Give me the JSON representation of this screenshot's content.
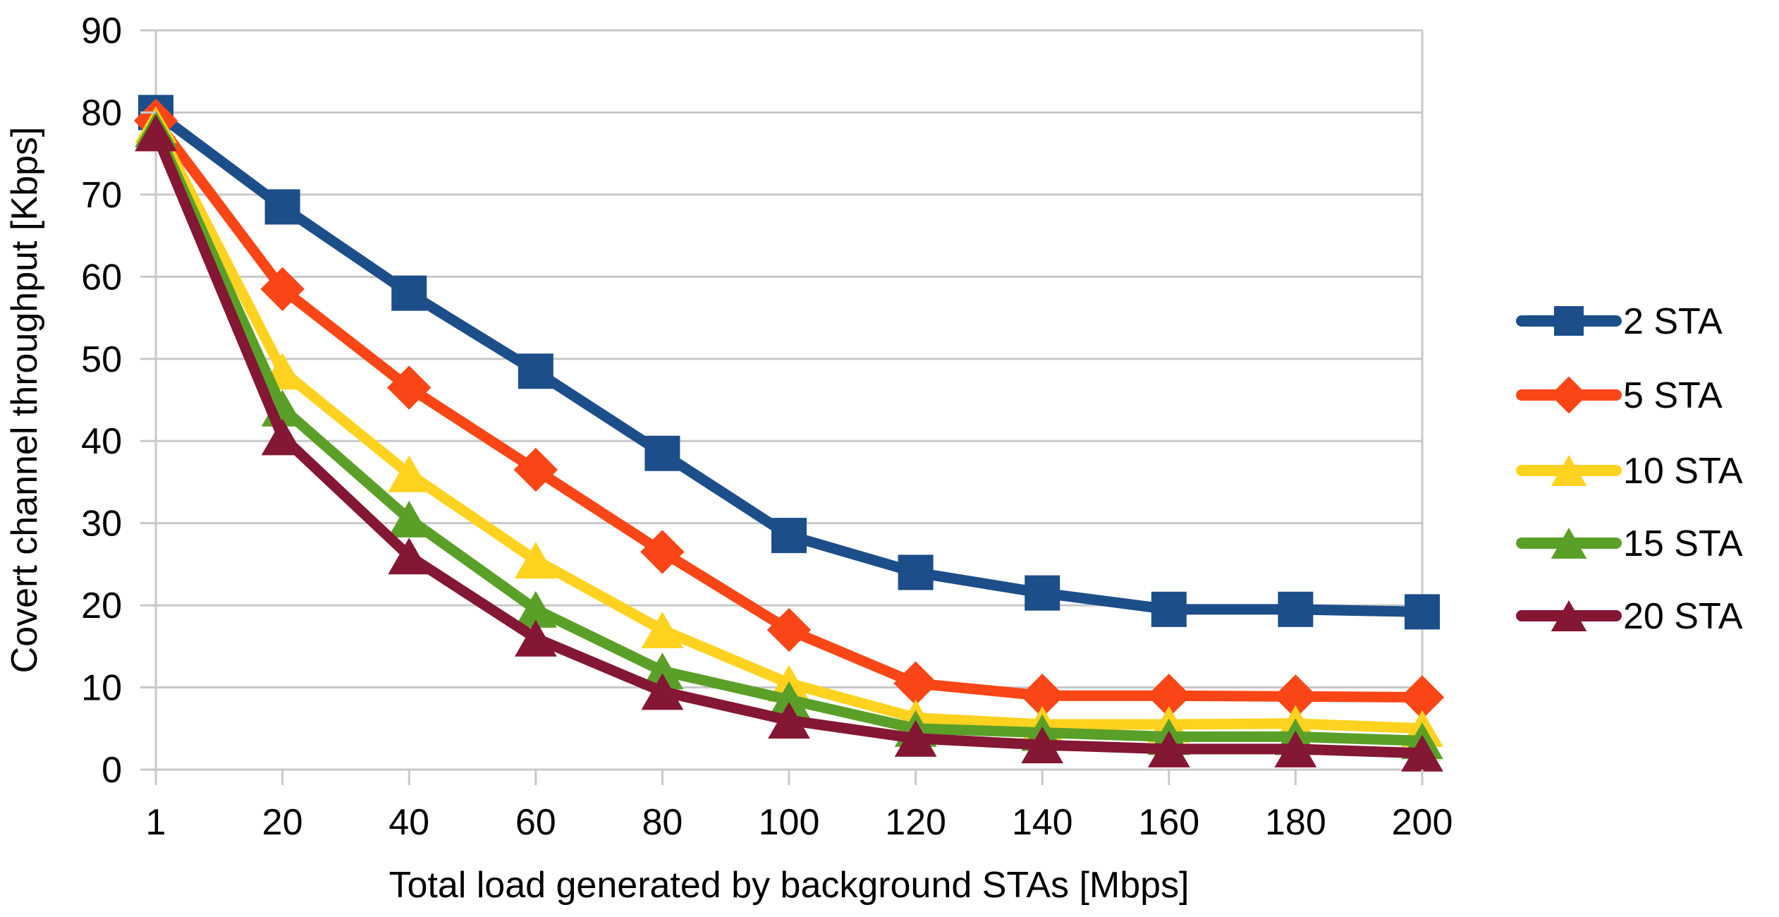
{
  "figure": {
    "background": "#ffffff"
  },
  "chart_data": {
    "type": "line",
    "title": "",
    "xlabel": "Total load generated by background STAs [Mbps]",
    "ylabel": "Covert channel throughput [Kbps]",
    "categories": [
      1,
      20,
      40,
      60,
      80,
      100,
      120,
      140,
      160,
      180,
      200
    ],
    "ylim": [
      0,
      90
    ],
    "ytick_step": 10,
    "yticks": [
      0,
      10,
      20,
      30,
      40,
      50,
      60,
      70,
      80,
      90
    ],
    "grid": "horizontal",
    "legend_position": "right",
    "axis_color": "#c8c8c8",
    "text_color": "#000000",
    "series": [
      {
        "name": "2 STA",
        "color": "#1c4e8a",
        "marker": "square",
        "values": [
          80,
          68.5,
          58,
          48.5,
          38.5,
          28.5,
          24,
          21.5,
          19.5,
          19.5,
          19.2
        ]
      },
      {
        "name": "5 STA",
        "color": "#fa4616",
        "marker": "diamond",
        "values": [
          79,
          58.5,
          46.5,
          36.5,
          26.5,
          17,
          10.5,
          9,
          9,
          8.9,
          8.8
        ]
      },
      {
        "name": "10 STA",
        "color": "#ffd21f",
        "marker": "triangle",
        "values": [
          78.5,
          48.5,
          36,
          25.5,
          17,
          10.5,
          6.3,
          5.5,
          5.5,
          5.6,
          5
        ]
      },
      {
        "name": "15 STA",
        "color": "#5aa028",
        "marker": "triangle",
        "values": [
          78,
          44,
          30.5,
          19.5,
          12,
          8.5,
          5,
          4.5,
          4,
          4,
          3.5
        ]
      },
      {
        "name": "20 STA",
        "color": "#841733",
        "marker": "triangle",
        "values": [
          77.5,
          40.5,
          26,
          16,
          9.5,
          6,
          3.8,
          3,
          2.5,
          2.5,
          2
        ]
      }
    ]
  }
}
